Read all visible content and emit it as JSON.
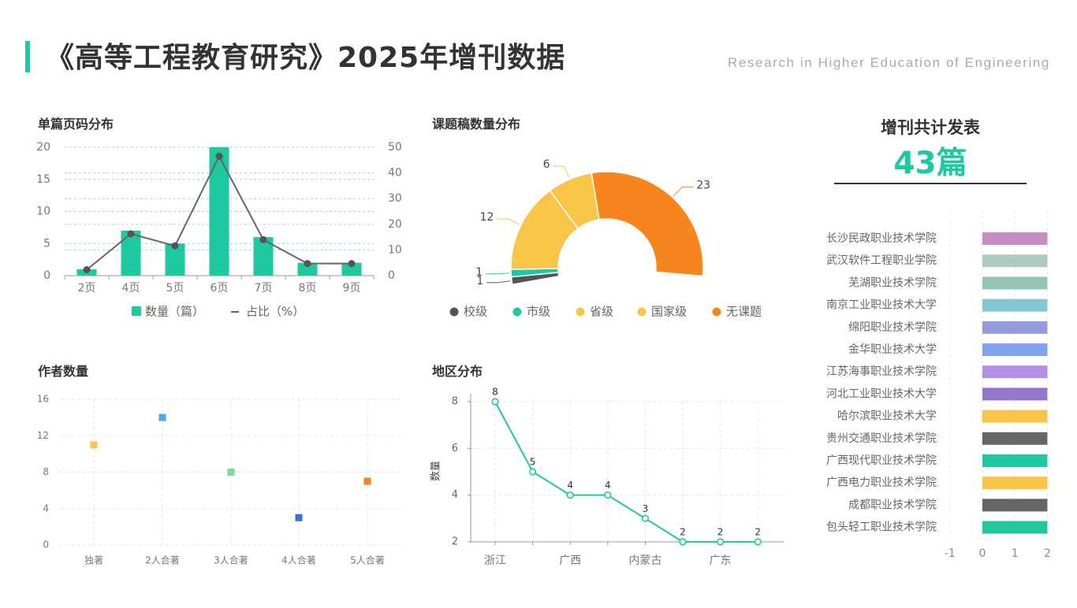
{
  "page": {
    "title": "《高等工程教育研究》2025年增刊数据",
    "subtitle_en": "Research in Higher Education of Engineering",
    "accent_color": "#1ec8a0"
  },
  "total": {
    "label": "增刊共计发表",
    "value": "43篇"
  },
  "chart_data": [
    {
      "id": "page-count",
      "type": "bar",
      "title": "单篇页码分布",
      "categories": [
        "2页",
        "4页",
        "5页",
        "6页",
        "7页",
        "8页",
        "9页"
      ],
      "series": [
        {
          "name": "数量（篇）",
          "type": "bar",
          "axis": "left",
          "color": "#1ec8a0",
          "values": [
            1,
            7,
            5,
            20,
            6,
            2,
            2
          ]
        },
        {
          "name": "占比（%）",
          "type": "line",
          "axis": "right",
          "color": "#666666",
          "values": [
            2.3,
            16.3,
            11.6,
            46.5,
            14.0,
            4.7,
            4.7
          ]
        }
      ],
      "y_left": {
        "ticks": [
          0,
          5,
          10,
          15,
          20
        ],
        "range": [
          0,
          20
        ]
      },
      "y_right": {
        "ticks": [
          0,
          10,
          20,
          30,
          40,
          50
        ],
        "range": [
          0,
          50
        ]
      },
      "legend_position": "bottom",
      "grid": true
    },
    {
      "id": "topic",
      "type": "pie",
      "title": "课题稿数量分布",
      "shape": "half-donut",
      "slices": [
        {
          "name": "校级",
          "value": 1,
          "color": "#555555"
        },
        {
          "name": "市级",
          "value": 1,
          "color": "#1ec8a0"
        },
        {
          "name": "省级",
          "value": 12,
          "color": "#f9c547"
        },
        {
          "name": "国家级",
          "value": 6,
          "color": "#f9c547"
        },
        {
          "name": "无课题",
          "value": 23,
          "color": "#f7841c"
        }
      ],
      "legend_position": "bottom"
    },
    {
      "id": "authors",
      "type": "scatter",
      "title": "作者数量",
      "categories": [
        "独著",
        "2人合著",
        "3人合著",
        "4人合著",
        "5人合著"
      ],
      "values": [
        11,
        14,
        8,
        3,
        7
      ],
      "colors": [
        "#f9c547",
        "#4aa8e8",
        "#7ddb9b",
        "#3b6fe0",
        "#f7841c"
      ],
      "y_ticks": [
        0,
        4,
        8,
        12,
        16
      ],
      "ylim": [
        0,
        16
      ],
      "grid": true
    },
    {
      "id": "region",
      "type": "line",
      "title": "地区分布",
      "ylabel": "数量",
      "x_tick_labels": [
        "浙江",
        "",
        "广西",
        "",
        "内蒙古",
        "",
        "广东",
        ""
      ],
      "values": [
        8,
        5,
        4,
        4,
        3,
        2,
        2,
        2
      ],
      "y_ticks": [
        2,
        4,
        6,
        8
      ],
      "ylim": [
        2,
        8
      ],
      "color": "#1ec8a0",
      "grid": true
    },
    {
      "id": "institutions",
      "type": "bar",
      "orientation": "horizontal",
      "categories": [
        "长沙民政职业技术学院",
        "武汉软件工程职业学院",
        "芜湖职业技术学院",
        "南京工业职业技术大学",
        "绵阳职业技术学院",
        "金华职业技术大学",
        "江苏海事职业技术学院",
        "河北工业职业技术大学",
        "哈尔滨职业技术大学",
        "贵州交通职业技术学院",
        "广西现代职业技术学院",
        "广西电力职业技术学院",
        "成都职业技术学院",
        "包头轻工职业技术学院"
      ],
      "values": [
        2,
        2,
        2,
        2,
        2,
        2,
        2,
        2,
        2,
        2,
        2,
        2,
        2,
        2
      ],
      "colors": [
        "#c48ec4",
        "#aecbc3",
        "#93c4b4",
        "#86c5d4",
        "#9499e0",
        "#82a3f0",
        "#b18ee8",
        "#9476cc",
        "#f9c547",
        "#666666",
        "#1ec8a0",
        "#f9c547",
        "#666666",
        "#1ec8a0"
      ],
      "x_ticks": [
        -1,
        0,
        1,
        2
      ],
      "xlim": [
        -1,
        2
      ]
    }
  ]
}
